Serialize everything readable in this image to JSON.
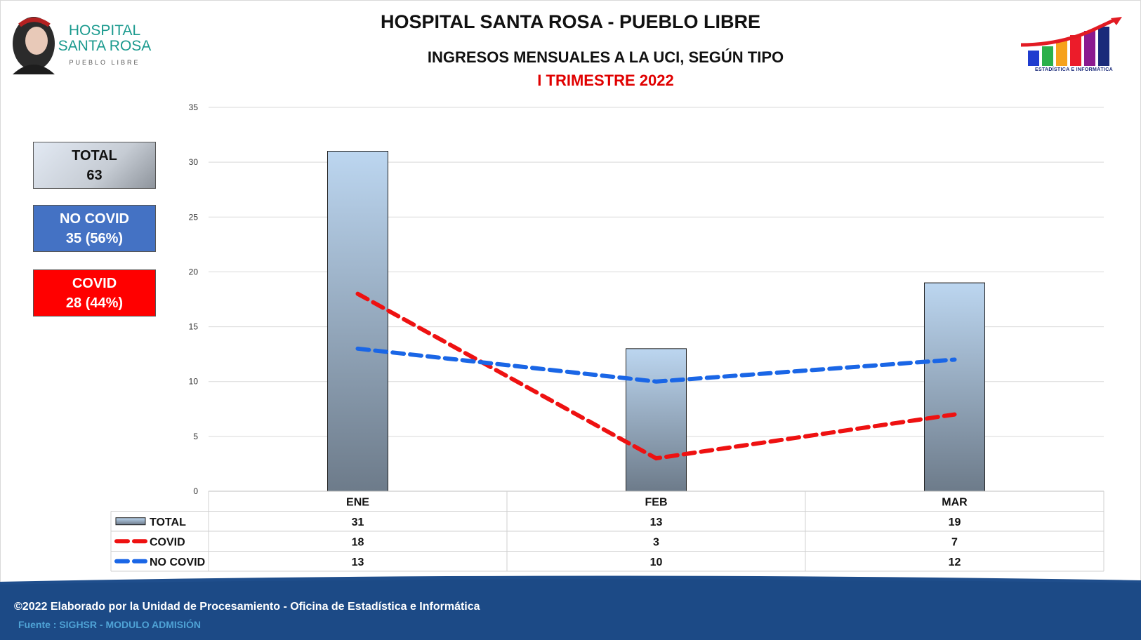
{
  "header": {
    "title": "HOSPITAL SANTA ROSA - PUEBLO LIBRE",
    "subtitle": "INGRESOS MENSUALES A LA UCI, SEGÚN TIPO",
    "period": "I TRIMESTRE 2022"
  },
  "logo_left": {
    "name": "HOSPITAL\nSANTA ROSA",
    "sub": "PUEBLO LIBRE"
  },
  "logo_right": {
    "caption": "ESTADÍSTICA E INFORMÁTICA"
  },
  "summary": {
    "total": {
      "label": "TOTAL",
      "value": "63"
    },
    "no_covid": {
      "label": "NO COVID",
      "value": "35 (56%)"
    },
    "covid": {
      "label": "COVID",
      "value": "28 (44%)"
    }
  },
  "colors": {
    "total_bar_top": "#bcd6f0",
    "total_bar_bottom": "#6d7b8a",
    "covid": "#ee1111",
    "no_covid": "#1a66e6",
    "no_covid_box": "#4472c4",
    "covid_box": "#ff0000"
  },
  "chart_data": {
    "type": "bar",
    "categories": [
      "ENE",
      "FEB",
      "MAR"
    ],
    "ylim": [
      0,
      35
    ],
    "yticks": [
      "0",
      "5",
      "10",
      "15",
      "20",
      "25",
      "30",
      "35"
    ],
    "series": [
      {
        "name": "TOTAL",
        "kind": "bar",
        "values": [
          31,
          13,
          19
        ]
      },
      {
        "name": "COVID",
        "kind": "dashed-line",
        "values": [
          18,
          3,
          7
        ]
      },
      {
        "name": "NO COVID",
        "kind": "dashed-line",
        "values": [
          13,
          10,
          12
        ]
      }
    ],
    "data_table": true,
    "grid": true
  },
  "footer": {
    "credit": "©2022 Elaborado por la Unidad de Procesamiento - Oficina de Estadística e Informática",
    "source": "Fuente : SIGHSR - MODULO ADMISIÓN"
  }
}
